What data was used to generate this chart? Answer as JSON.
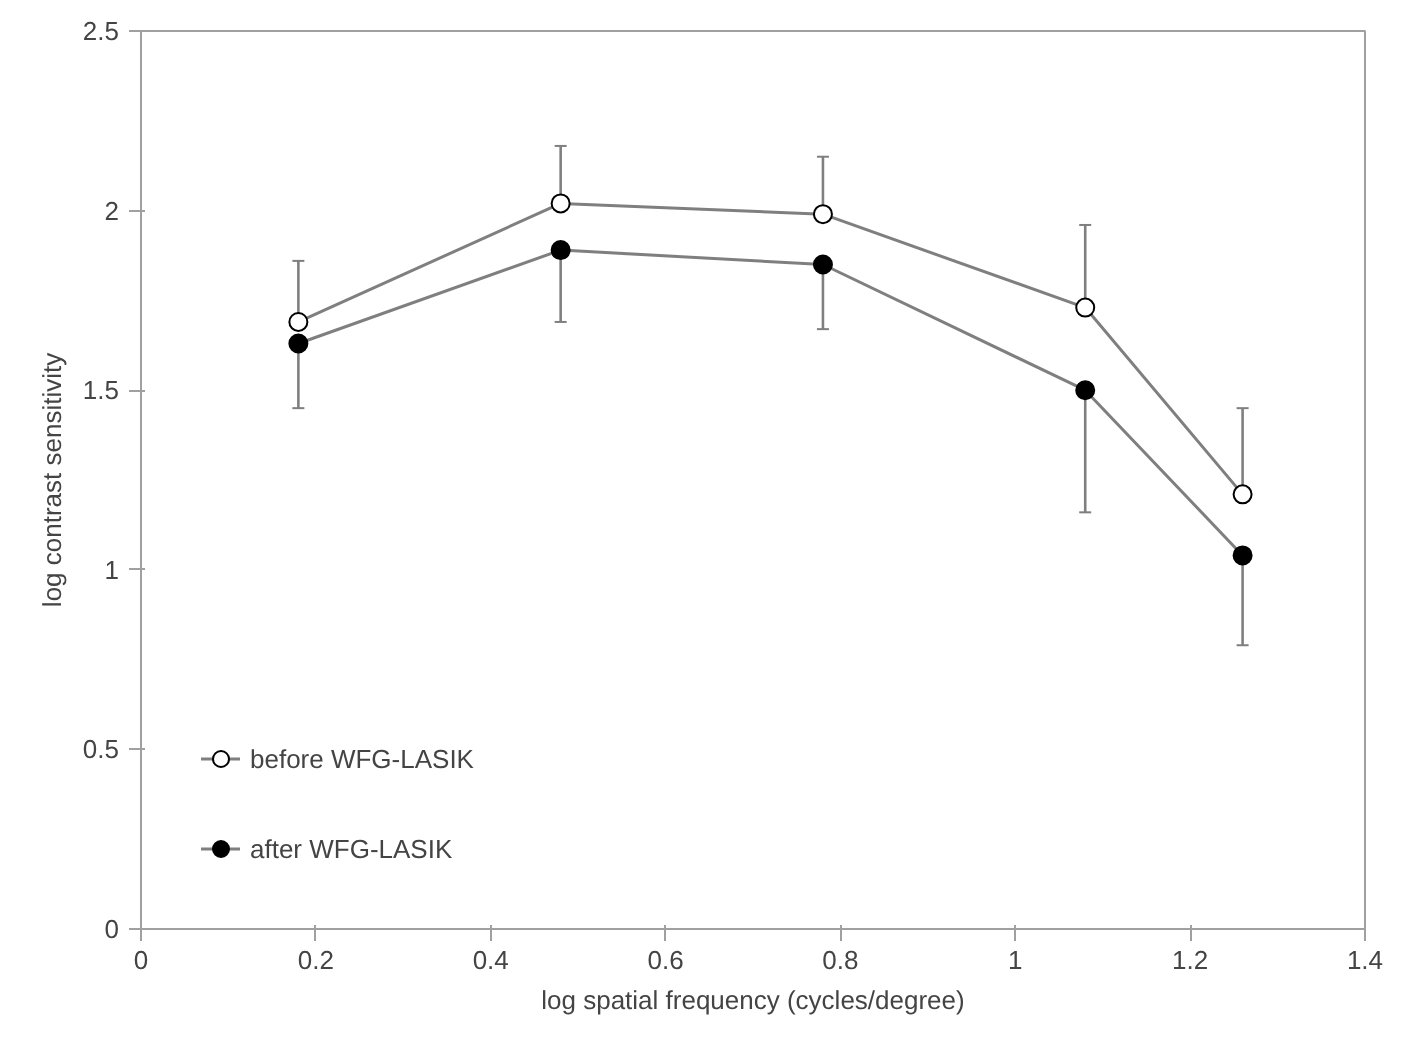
{
  "chart_data": {
    "type": "line",
    "xlabel": "log spatial frequency (cycles/degree)",
    "ylabel": "log contrast sensitivity",
    "x": [
      0.18,
      0.48,
      0.78,
      1.08,
      1.26
    ],
    "series": [
      {
        "name": "before WFG-LASIK",
        "color": "#ffffff",
        "values": [
          1.69,
          2.02,
          1.99,
          1.73,
          1.21
        ],
        "errors": [
          [
            1.69,
            1.86
          ],
          [
            2.02,
            2.18
          ],
          [
            1.99,
            2.15
          ],
          [
            1.73,
            1.96
          ],
          [
            1.21,
            1.45
          ]
        ]
      },
      {
        "name": "after WFG-LASIK",
        "color": "#000000",
        "values": [
          1.63,
          1.89,
          1.85,
          1.5,
          1.04
        ],
        "errors": [
          [
            1.45,
            1.63
          ],
          [
            1.69,
            1.89
          ],
          [
            1.67,
            1.85
          ],
          [
            1.16,
            1.5
          ],
          [
            0.79,
            1.04
          ]
        ]
      }
    ],
    "xlim": [
      0,
      1.4
    ],
    "xticks": [
      0,
      0.2,
      0.4,
      0.6,
      0.8,
      1,
      1.2,
      1.4
    ],
    "ylim": [
      0,
      2.5
    ],
    "yticks": [
      0,
      0.5,
      1,
      1.5,
      2,
      2.5
    ],
    "grid": false,
    "legend": "bottom left",
    "marker": "circle",
    "line_style": "solid"
  }
}
